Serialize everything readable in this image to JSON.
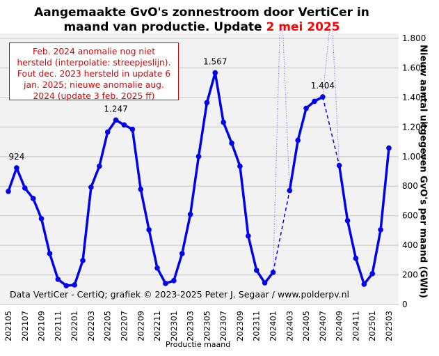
{
  "title": {
    "line1": "Aangemaakte GvO's zonnestroom door VertiCer in",
    "line2_prefix": "maand van productie. Update ",
    "line2_highlight": "2 mei 2025",
    "highlight_color": "#ff0000"
  },
  "annotation": {
    "lines": [
      "Feb. 2024 anomalie nog niet",
      "hersteld (interpolatie: streepjeslijn).",
      "Fout dec. 2023 hersteld in update 6",
      "jan. 2025; nieuwe anomalie aug.",
      "2024 (update 3 feb. 2025 ff)"
    ],
    "color": "#e00000"
  },
  "credit": "Data VertiCer  - CertiQ; grafiek © 2023-2025  Peter J. Segaar / www.polderpv.nl",
  "chart_data": {
    "type": "line",
    "title": "Aangemaakte GvO's zonnestroom door VertiCer in maand van productie. Update 2 mei 2025",
    "xlabel": "Productie maand",
    "ylabel": "Nieuw  aantal uitgegeven GvO's per maand (GWh)",
    "ylim": [
      0,
      1800
    ],
    "yticks": [
      0,
      200,
      400,
      600,
      800,
      1000,
      1200,
      1400,
      1600,
      1800
    ],
    "ytick_labels": [
      "0",
      "200",
      "400",
      "600",
      "800",
      "1.000",
      "1.200",
      "1.400",
      "1.600",
      "1.800"
    ],
    "y_axis_side": "right",
    "grid": true,
    "line_color": "#0000ee",
    "x": [
      "202105",
      "202106",
      "202107",
      "202108",
      "202109",
      "202110",
      "202111",
      "202112",
      "202201",
      "202202",
      "202203",
      "202204",
      "202205",
      "202206",
      "202207",
      "202208",
      "202209",
      "202210",
      "202211",
      "202212",
      "202301",
      "202302",
      "202303",
      "202304",
      "202305",
      "202306",
      "202307",
      "202308",
      "202309",
      "202310",
      "202311",
      "202312",
      "202401",
      "202402",
      "202403",
      "202404",
      "202405",
      "202406",
      "202407",
      "202408",
      "202409",
      "202410",
      "202411",
      "202412",
      "202501",
      "202502",
      "202503"
    ],
    "xtick_labels": [
      "202105",
      "202107",
      "202109",
      "202111",
      "202201",
      "202203",
      "202205",
      "202207",
      "202209",
      "202211",
      "202301",
      "202303",
      "202305",
      "202307",
      "202309",
      "202311",
      "202401",
      "202403",
      "202405",
      "202407",
      "202409",
      "202411",
      "202501",
      "202503"
    ],
    "series": [
      {
        "name": "GvO's per maand",
        "values": [
          765,
          924,
          787,
          717,
          580,
          344,
          170,
          127,
          132,
          297,
          793,
          935,
          1166,
          1247,
          1214,
          1185,
          779,
          505,
          246,
          142,
          161,
          344,
          609,
          1001,
          1365,
          1567,
          1232,
          1091,
          935,
          463,
          231,
          146,
          217,
          null,
          770,
          1110,
          1327,
          1374,
          1404,
          null,
          940,
          567,
          312,
          137,
          208,
          505,
          1058
        ]
      }
    ],
    "interpolated_gaps": [
      {
        "from": "202401",
        "to": "202403",
        "style": "dashed"
      },
      {
        "from": "202407",
        "to": "202409",
        "style": "dashed"
      }
    ],
    "anomaly_spikes": [
      {
        "from": "202401",
        "to": "202403",
        "note": "off-scale anomaly (dotted, faint)"
      },
      {
        "from": "202407",
        "to": "202409",
        "note": "off-scale anomaly (dotted, faint)"
      }
    ],
    "data_labels": [
      {
        "x": "202106",
        "text": "924"
      },
      {
        "x": "202206",
        "text": "1.247"
      },
      {
        "x": "202306",
        "text": "1.567"
      },
      {
        "x": "202407",
        "text": "1.404"
      }
    ]
  }
}
